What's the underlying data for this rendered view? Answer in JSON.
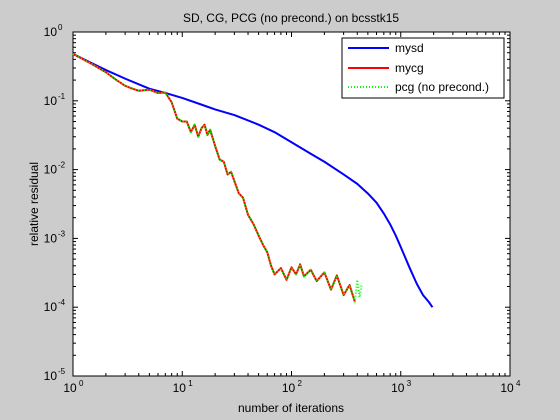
{
  "chart_data": {
    "type": "line",
    "title": "SD, CG, PCG (no precond.) on bcsstk15",
    "xlabel": "number of iterations",
    "ylabel": "relative residual",
    "x_scale": "log",
    "y_scale": "log",
    "xlim": [
      1,
      10000
    ],
    "ylim": [
      1e-05,
      1
    ],
    "x_ticks": [
      {
        "value": 1,
        "base": "10",
        "exp": "0"
      },
      {
        "value": 10,
        "base": "10",
        "exp": "1"
      },
      {
        "value": 100,
        "base": "10",
        "exp": "2"
      },
      {
        "value": 1000,
        "base": "10",
        "exp": "3"
      },
      {
        "value": 10000,
        "base": "10",
        "exp": "4"
      }
    ],
    "y_ticks": [
      {
        "value": 1,
        "base": "10",
        "exp": "0"
      },
      {
        "value": 0.1,
        "base": "10",
        "exp": "-1"
      },
      {
        "value": 0.01,
        "base": "10",
        "exp": "-2"
      },
      {
        "value": 0.001,
        "base": "10",
        "exp": "-3"
      },
      {
        "value": 0.0001,
        "base": "10",
        "exp": "-4"
      },
      {
        "value": 1e-05,
        "base": "10",
        "exp": "-5"
      }
    ],
    "grid": false,
    "legend_position": "top-right",
    "series": [
      {
        "name": "mysd",
        "color": "#0000ff",
        "style": "solid",
        "points": [
          [
            1,
            0.48
          ],
          [
            1.5,
            0.35
          ],
          [
            2,
            0.28
          ],
          [
            3,
            0.21
          ],
          [
            5,
            0.15
          ],
          [
            7,
            0.13
          ],
          [
            10,
            0.11
          ],
          [
            15,
            0.088
          ],
          [
            20,
            0.075
          ],
          [
            30,
            0.062
          ],
          [
            50,
            0.045
          ],
          [
            70,
            0.035
          ],
          [
            100,
            0.025
          ],
          [
            150,
            0.017
          ],
          [
            200,
            0.013
          ],
          [
            300,
            0.0085
          ],
          [
            400,
            0.0062
          ],
          [
            500,
            0.0045
          ],
          [
            600,
            0.0033
          ],
          [
            700,
            0.0023
          ],
          [
            800,
            0.0016
          ],
          [
            900,
            0.0011
          ],
          [
            1000,
            0.00075
          ],
          [
            1200,
            0.00038
          ],
          [
            1400,
            0.00022
          ],
          [
            1600,
            0.00015
          ],
          [
            1800,
            0.00012
          ],
          [
            1950,
            0.0001
          ]
        ]
      },
      {
        "name": "mycg",
        "color": "#ff0000",
        "style": "solid",
        "points": [
          [
            1,
            0.48
          ],
          [
            1.5,
            0.34
          ],
          [
            2,
            0.26
          ],
          [
            2.5,
            0.2
          ],
          [
            3,
            0.165
          ],
          [
            3.5,
            0.15
          ],
          [
            4,
            0.14
          ],
          [
            5,
            0.145
          ],
          [
            6,
            0.13
          ],
          [
            7,
            0.132
          ],
          [
            8,
            0.095
          ],
          [
            9,
            0.055
          ],
          [
            10,
            0.05
          ],
          [
            11,
            0.05
          ],
          [
            12,
            0.035
          ],
          [
            13,
            0.045
          ],
          [
            14,
            0.03
          ],
          [
            15,
            0.04
          ],
          [
            16,
            0.045
          ],
          [
            17,
            0.032
          ],
          [
            18,
            0.038
          ],
          [
            20,
            0.022
          ],
          [
            22,
            0.014
          ],
          [
            24,
            0.013
          ],
          [
            26,
            0.0085
          ],
          [
            28,
            0.0093
          ],
          [
            30,
            0.0068
          ],
          [
            33,
            0.0045
          ],
          [
            36,
            0.0039
          ],
          [
            40,
            0.0022
          ],
          [
            45,
            0.0016
          ],
          [
            50,
            0.0011
          ],
          [
            55,
            0.0008
          ],
          [
            60,
            0.00063
          ],
          [
            65,
            0.0004
          ],
          [
            70,
            0.0003
          ],
          [
            80,
            0.00037
          ],
          [
            90,
            0.00025
          ],
          [
            100,
            0.00038
          ],
          [
            110,
            0.0003
          ],
          [
            120,
            0.00042
          ],
          [
            130,
            0.00028
          ],
          [
            150,
            0.00035
          ],
          [
            170,
            0.00024
          ],
          [
            200,
            0.00032
          ],
          [
            230,
            0.00018
          ],
          [
            260,
            0.00029
          ],
          [
            300,
            0.00015
          ],
          [
            340,
            0.00021
          ],
          [
            380,
            0.00012
          ]
        ]
      },
      {
        "name": "pcg (no precond.)",
        "color": "#00ff00",
        "style": "dotted",
        "points": [
          [
            1,
            0.48
          ],
          [
            1.5,
            0.34
          ],
          [
            2,
            0.26
          ],
          [
            2.5,
            0.2
          ],
          [
            3,
            0.165
          ],
          [
            3.5,
            0.15
          ],
          [
            4,
            0.14
          ],
          [
            5,
            0.145
          ],
          [
            6,
            0.13
          ],
          [
            7,
            0.132
          ],
          [
            8,
            0.095
          ],
          [
            9,
            0.055
          ],
          [
            10,
            0.05
          ],
          [
            11,
            0.05
          ],
          [
            12,
            0.035
          ],
          [
            13,
            0.045
          ],
          [
            14,
            0.03
          ],
          [
            15,
            0.04
          ],
          [
            16,
            0.045
          ],
          [
            17,
            0.032
          ],
          [
            18,
            0.038
          ],
          [
            20,
            0.022
          ],
          [
            22,
            0.014
          ],
          [
            24,
            0.013
          ],
          [
            26,
            0.0085
          ],
          [
            28,
            0.0093
          ],
          [
            30,
            0.0068
          ],
          [
            33,
            0.0045
          ],
          [
            36,
            0.0039
          ],
          [
            40,
            0.0022
          ],
          [
            45,
            0.0016
          ],
          [
            50,
            0.0011
          ],
          [
            55,
            0.0008
          ],
          [
            60,
            0.00063
          ],
          [
            65,
            0.0004
          ],
          [
            70,
            0.0003
          ],
          [
            80,
            0.00037
          ],
          [
            90,
            0.00025
          ],
          [
            100,
            0.00038
          ],
          [
            110,
            0.0003
          ],
          [
            120,
            0.00042
          ],
          [
            130,
            0.00028
          ],
          [
            150,
            0.00035
          ],
          [
            170,
            0.00024
          ],
          [
            200,
            0.00032
          ],
          [
            230,
            0.00018
          ],
          [
            260,
            0.00029
          ],
          [
            300,
            0.00015
          ],
          [
            340,
            0.00021
          ],
          [
            380,
            0.00012
          ],
          [
            400,
            0.00025
          ],
          [
            420,
            0.00014
          ],
          [
            440,
            0.00022
          ]
        ]
      }
    ]
  }
}
